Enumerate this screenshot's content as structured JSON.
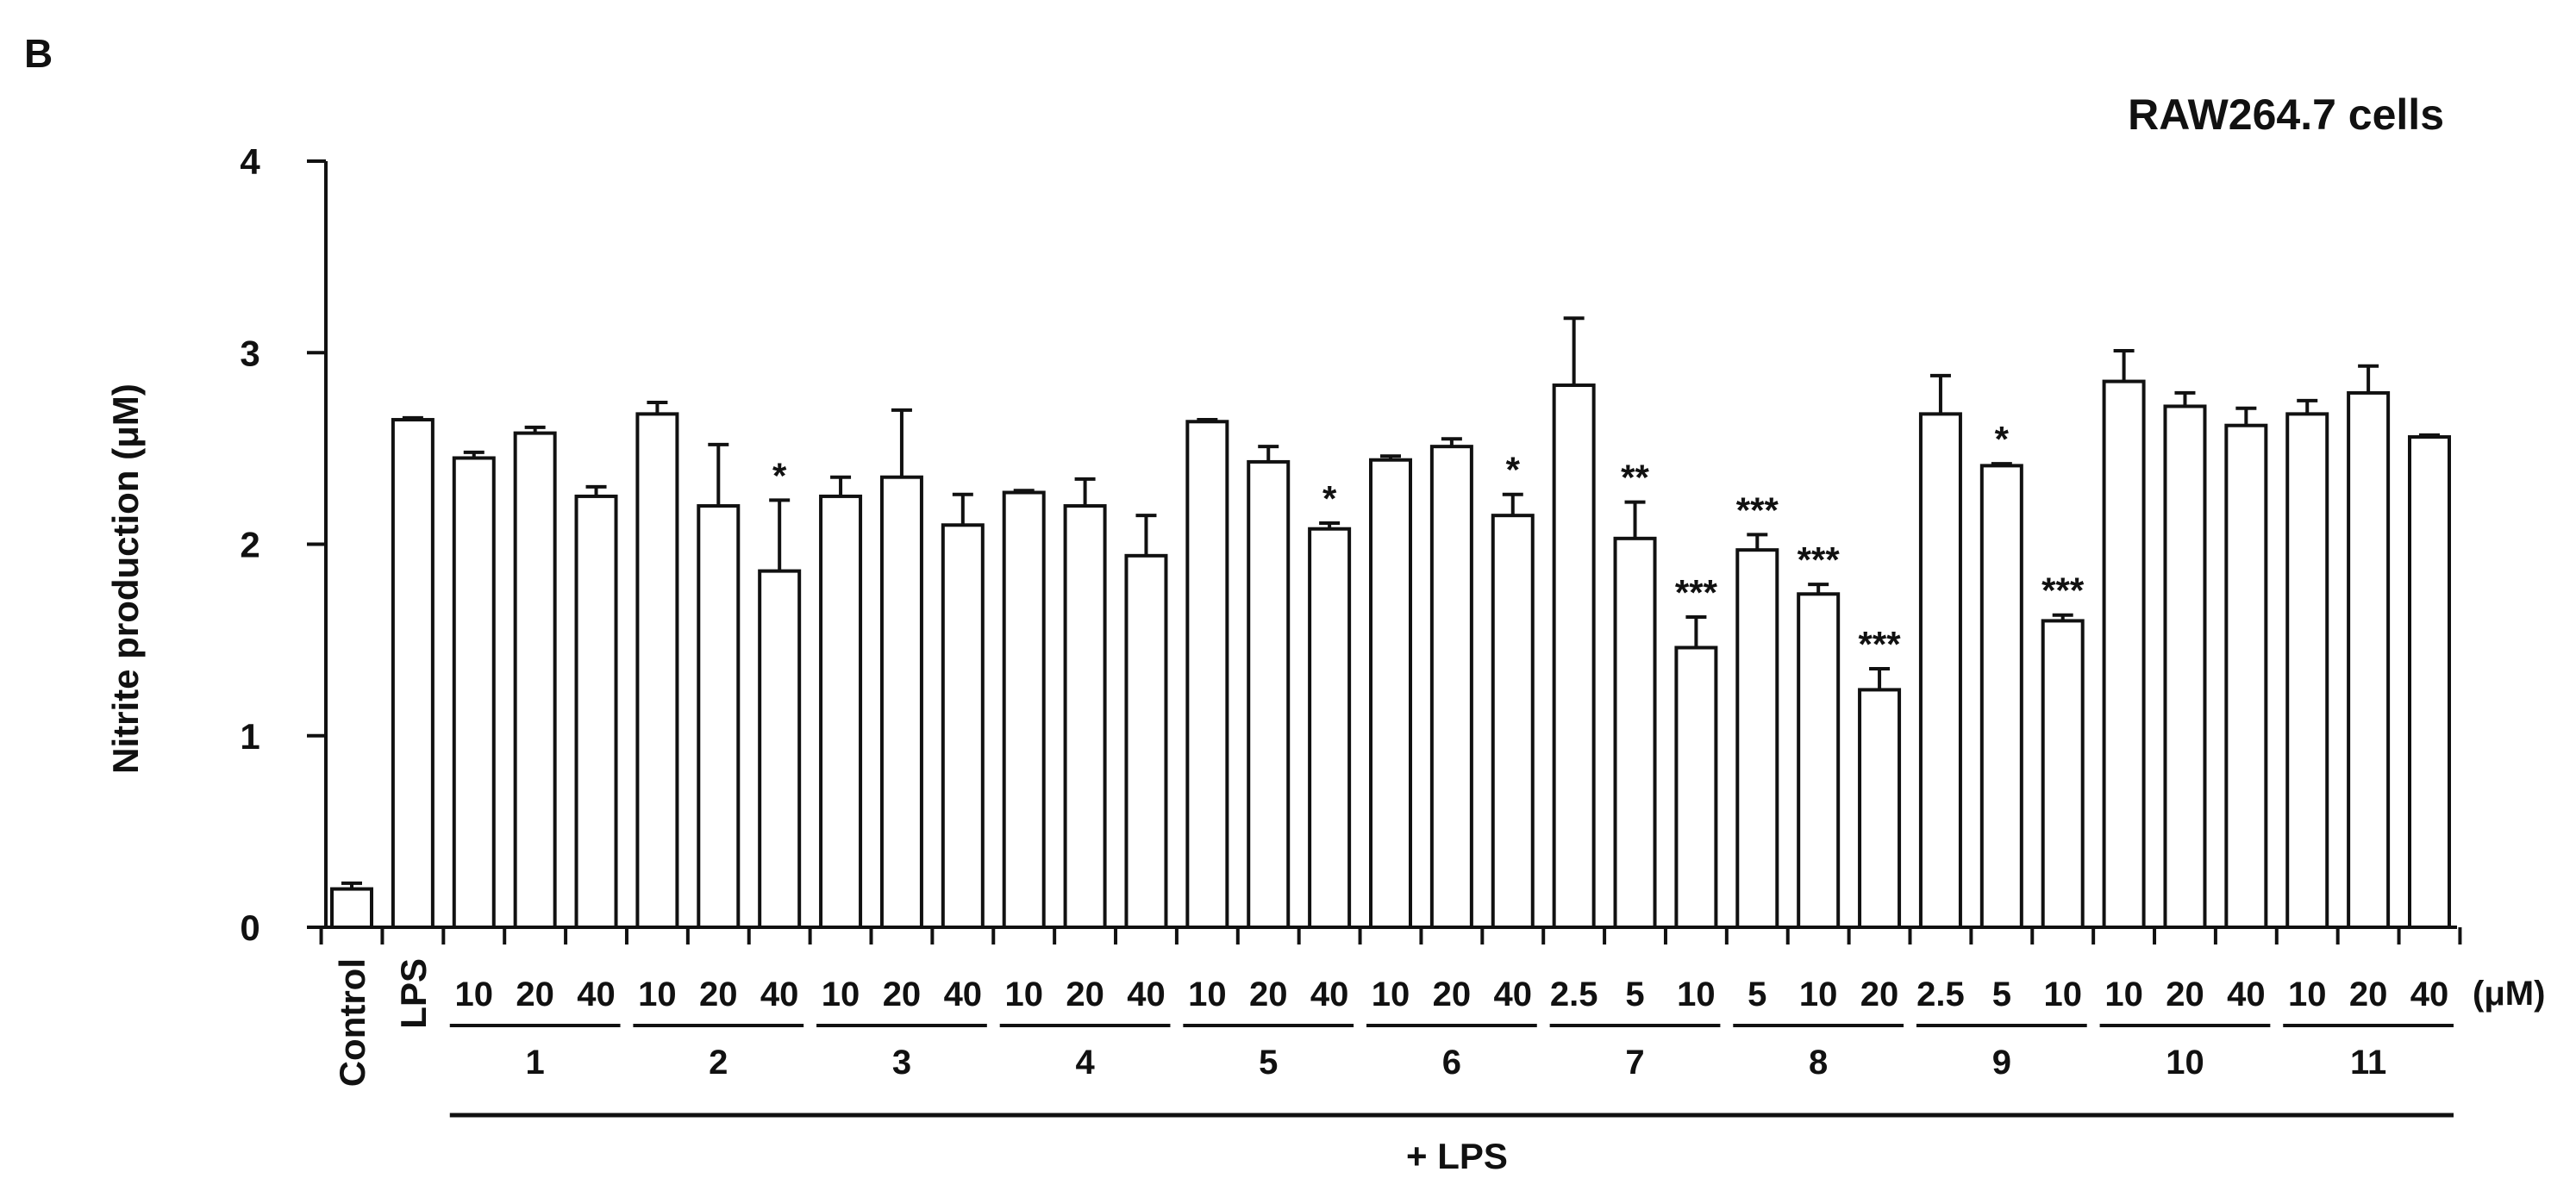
{
  "panel_label": "B",
  "chart_data": {
    "type": "bar",
    "title": "RAW264.7 cells",
    "ylabel": "Nitrite production (μM)",
    "xlabel": "",
    "ylim": [
      0,
      4
    ],
    "yticks": [
      0,
      1,
      2,
      3,
      4
    ],
    "grid": false,
    "legend": "none",
    "unit_label": "(μM)",
    "group_label": "+ LPS",
    "bars": [
      {
        "label": "Control",
        "value": 0.2,
        "err": 0.03,
        "sig": "",
        "group": null
      },
      {
        "label": "LPS",
        "value": 2.65,
        "err": 0.01,
        "sig": "",
        "group": null
      },
      {
        "label": "10",
        "value": 2.45,
        "err": 0.03,
        "sig": "",
        "group": "1"
      },
      {
        "label": "20",
        "value": 2.58,
        "err": 0.03,
        "sig": "",
        "group": "1"
      },
      {
        "label": "40",
        "value": 2.25,
        "err": 0.05,
        "sig": "",
        "group": "1"
      },
      {
        "label": "10",
        "value": 2.68,
        "err": 0.06,
        "sig": "",
        "group": "2"
      },
      {
        "label": "20",
        "value": 2.2,
        "err": 0.32,
        "sig": "",
        "group": "2"
      },
      {
        "label": "40",
        "value": 1.86,
        "err": 0.37,
        "sig": "*",
        "group": "2"
      },
      {
        "label": "10",
        "value": 2.25,
        "err": 0.1,
        "sig": "",
        "group": "3"
      },
      {
        "label": "20",
        "value": 2.35,
        "err": 0.35,
        "sig": "",
        "group": "3"
      },
      {
        "label": "40",
        "value": 2.1,
        "err": 0.16,
        "sig": "",
        "group": "3"
      },
      {
        "label": "10",
        "value": 2.27,
        "err": 0.01,
        "sig": "",
        "group": "4"
      },
      {
        "label": "20",
        "value": 2.2,
        "err": 0.14,
        "sig": "",
        "group": "4"
      },
      {
        "label": "40",
        "value": 1.94,
        "err": 0.21,
        "sig": "",
        "group": "4"
      },
      {
        "label": "10",
        "value": 2.64,
        "err": 0.01,
        "sig": "",
        "group": "5"
      },
      {
        "label": "20",
        "value": 2.43,
        "err": 0.08,
        "sig": "",
        "group": "5"
      },
      {
        "label": "40",
        "value": 2.08,
        "err": 0.03,
        "sig": "*",
        "group": "5"
      },
      {
        "label": "10",
        "value": 2.44,
        "err": 0.02,
        "sig": "",
        "group": "6"
      },
      {
        "label": "20",
        "value": 2.51,
        "err": 0.04,
        "sig": "",
        "group": "6"
      },
      {
        "label": "40",
        "value": 2.15,
        "err": 0.11,
        "sig": "*",
        "group": "6"
      },
      {
        "label": "2.5",
        "value": 2.83,
        "err": 0.35,
        "sig": "",
        "group": "7"
      },
      {
        "label": "5",
        "value": 2.03,
        "err": 0.19,
        "sig": "**",
        "group": "7"
      },
      {
        "label": "10",
        "value": 1.46,
        "err": 0.16,
        "sig": "***",
        "group": "7"
      },
      {
        "label": "5",
        "value": 1.97,
        "err": 0.08,
        "sig": "***",
        "group": "8"
      },
      {
        "label": "10",
        "value": 1.74,
        "err": 0.05,
        "sig": "***",
        "group": "8"
      },
      {
        "label": "20",
        "value": 1.24,
        "err": 0.11,
        "sig": "***",
        "group": "8"
      },
      {
        "label": "2.5",
        "value": 2.68,
        "err": 0.2,
        "sig": "",
        "group": "9"
      },
      {
        "label": "5",
        "value": 2.41,
        "err": 0.01,
        "sig": "*",
        "group": "9"
      },
      {
        "label": "10",
        "value": 1.6,
        "err": 0.03,
        "sig": "***",
        "group": "9"
      },
      {
        "label": "10",
        "value": 2.85,
        "err": 0.16,
        "sig": "",
        "group": "10"
      },
      {
        "label": "20",
        "value": 2.72,
        "err": 0.07,
        "sig": "",
        "group": "10"
      },
      {
        "label": "40",
        "value": 2.62,
        "err": 0.09,
        "sig": "",
        "group": "10"
      },
      {
        "label": "10",
        "value": 2.68,
        "err": 0.07,
        "sig": "",
        "group": "11"
      },
      {
        "label": "20",
        "value": 2.79,
        "err": 0.14,
        "sig": "",
        "group": "11"
      },
      {
        "label": "40",
        "value": 2.56,
        "err": 0.01,
        "sig": "",
        "group": "11"
      }
    ],
    "groups": [
      "1",
      "2",
      "3",
      "4",
      "5",
      "6",
      "7",
      "8",
      "9",
      "10",
      "11"
    ]
  }
}
